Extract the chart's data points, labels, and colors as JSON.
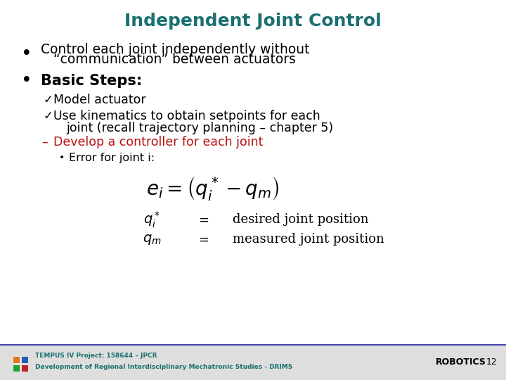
{
  "title": "Independent Joint Control",
  "title_color": "#1a7070",
  "title_fontsize": 18,
  "bullet1_line1": "Control each joint independently without",
  "bullet1_line2": "“communication” between actuators",
  "bullet2": "Basic Steps:",
  "check1": "Model actuator",
  "check2_line1": "Use kinematics to obtain setpoints for each",
  "check2_line2": "joint (recall trajectory planning – chapter 5)",
  "dash1": "Develop a controller for each joint",
  "dash1_color": "#bb1111",
  "sub_bullet": "Error for joint i:",
  "equation": "$e_i = \\left(q_i^* - q_m\\right)$",
  "eq_line1_math": "$q_i^*$",
  "eq_line1_eq": "$=$",
  "eq_line1_desc": "desired joint position",
  "eq_line2_math": "$q_m$",
  "eq_line2_eq": "$=$",
  "eq_line2_desc": "measured joint position",
  "footer_left1": "TEMPUS IV Project: 158644 – JPCR",
  "footer_left2": "Development of Regional Interdisciplinary Mechatronic Studies - DRIMS",
  "footer_right": "ROBOTICS",
  "footer_page": "12",
  "footer_color": "#1a7070",
  "bg_color": "#ffffff",
  "text_color": "#000000",
  "footer_bg": "#dedede",
  "logo_colors": [
    "#e07820",
    "#2060b0",
    "#20a030",
    "#c02020"
  ]
}
